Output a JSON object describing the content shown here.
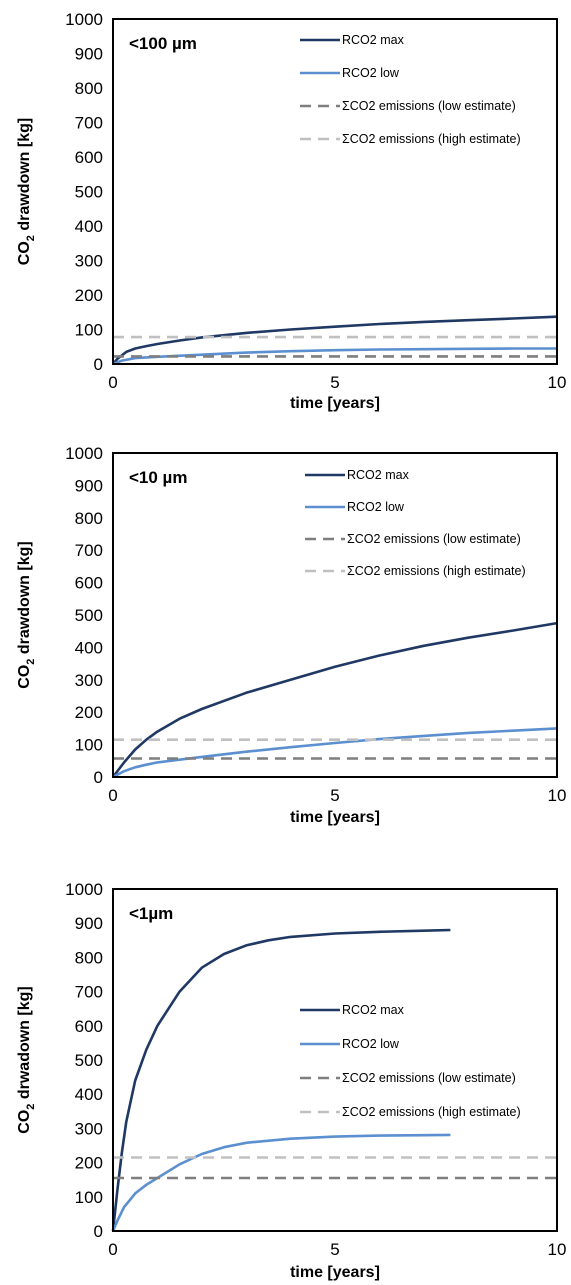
{
  "chart_data": [
    {
      "type": "line",
      "title": "<100 µm",
      "xlabel": "time [years]",
      "ylabel": {
        "main": "CO",
        "sub": "2",
        "rest": " drawdown [kg]"
      },
      "xlim": [
        0,
        10
      ],
      "ylim": [
        0,
        1000
      ],
      "xticks": [
        "0",
        "5",
        "10"
      ],
      "yticks": [
        "0",
        "100",
        "200",
        "300",
        "400",
        "500",
        "600",
        "700",
        "800",
        "900",
        "1000"
      ],
      "legend_position": "top-right",
      "series": [
        {
          "name": "RCO2 max",
          "color": "#203864",
          "dash": "solid",
          "x": [
            0,
            0.1,
            0.2,
            0.3,
            0.5,
            0.75,
            1,
            1.5,
            2,
            3,
            4,
            5,
            6,
            7,
            8,
            9,
            10
          ],
          "y": [
            0,
            15,
            25,
            35,
            45,
            52,
            58,
            68,
            77,
            90,
            100,
            108,
            116,
            122,
            127,
            132,
            137
          ]
        },
        {
          "name": "RCO2 low",
          "color": "#5b8fd0",
          "dash": "solid",
          "x": [
            0,
            0.2,
            0.5,
            1,
            2,
            3,
            4,
            5,
            6,
            7,
            8,
            9,
            10
          ],
          "y": [
            0,
            10,
            17,
            21,
            27,
            33,
            37,
            40,
            42,
            43,
            44,
            45,
            45
          ]
        },
        {
          "name": "ΣCO2 emissions (low estimate)",
          "color": "#7f7f7f",
          "dash": "dashed",
          "x": [
            0,
            10
          ],
          "y": [
            22,
            22
          ]
        },
        {
          "name": "ΣCO2 emissions (high estimate)",
          "color": "#c0c0c0",
          "dash": "dashed",
          "x": [
            0,
            10
          ],
          "y": [
            78,
            78
          ]
        }
      ]
    },
    {
      "type": "line",
      "title": "<10 µm",
      "xlabel": "time [years]",
      "ylabel": {
        "main": "CO",
        "sub": "2",
        "rest": " drawdown [kg]"
      },
      "xlim": [
        0,
        10
      ],
      "ylim": [
        0,
        1000
      ],
      "xticks": [
        "0",
        "5",
        "10"
      ],
      "yticks": [
        "0",
        "100",
        "200",
        "300",
        "400",
        "500",
        "600",
        "700",
        "800",
        "900",
        "1000"
      ],
      "legend_position": "top-right",
      "series": [
        {
          "name": "RCO2 max",
          "color": "#203864",
          "dash": "solid",
          "x": [
            0,
            0.25,
            0.5,
            0.75,
            1,
            1.5,
            2,
            3,
            4,
            5,
            6,
            7,
            8,
            9,
            10
          ],
          "y": [
            0,
            45,
            85,
            115,
            140,
            180,
            210,
            260,
            300,
            340,
            375,
            405,
            430,
            452,
            475
          ]
        },
        {
          "name": "RCO2 low",
          "color": "#5b8fd0",
          "dash": "solid",
          "x": [
            0,
            0.25,
            0.5,
            0.75,
            1,
            2,
            3,
            4,
            5,
            6,
            7,
            8,
            9,
            10
          ],
          "y": [
            0,
            18,
            30,
            38,
            45,
            62,
            78,
            92,
            105,
            117,
            127,
            136,
            143,
            150
          ]
        },
        {
          "name": "ΣCO2 emissions (low estimate)",
          "color": "#7f7f7f",
          "dash": "dashed",
          "x": [
            0,
            10
          ],
          "y": [
            57,
            57
          ]
        },
        {
          "name": "ΣCO2 emissions (high estimate)",
          "color": "#c0c0c0",
          "dash": "dashed",
          "x": [
            0,
            10
          ],
          "y": [
            115,
            115
          ]
        }
      ]
    },
    {
      "type": "line",
      "title": "<1µm",
      "xlabel": "time [years]",
      "ylabel": {
        "main": "CO",
        "sub": "2",
        "rest": " drwadown [kg]"
      },
      "xlim": [
        0,
        10
      ],
      "ylim": [
        0,
        1000
      ],
      "xticks": [
        "0",
        "5",
        "10"
      ],
      "yticks": [
        "0",
        "100",
        "200",
        "300",
        "400",
        "500",
        "600",
        "700",
        "800",
        "900",
        "1000"
      ],
      "legend_position": "center-right",
      "series": [
        {
          "name": "RCO2 max",
          "color": "#203864",
          "dash": "solid",
          "x": [
            0,
            0.1,
            0.2,
            0.3,
            0.5,
            0.75,
            1,
            1.5,
            2,
            2.5,
            3,
            3.5,
            4,
            5,
            6,
            7,
            7.6
          ],
          "y": [
            0,
            120,
            230,
            320,
            440,
            530,
            600,
            700,
            770,
            810,
            835,
            850,
            860,
            870,
            875,
            878,
            880
          ]
        },
        {
          "name": "RCO2 low",
          "color": "#5b8fd0",
          "dash": "solid",
          "x": [
            0,
            0.1,
            0.25,
            0.5,
            0.75,
            1,
            1.5,
            2,
            2.5,
            3,
            4,
            5,
            6,
            7,
            7.6
          ],
          "y": [
            0,
            30,
            70,
            110,
            135,
            155,
            195,
            225,
            245,
            258,
            270,
            276,
            279,
            280,
            281
          ]
        },
        {
          "name": "ΣCO2 emissions (low estimate)",
          "color": "#7f7f7f",
          "dash": "dashed",
          "x": [
            0,
            10
          ],
          "y": [
            155,
            155
          ]
        },
        {
          "name": "ΣCO2 emissions (high estimate)",
          "color": "#c0c0c0",
          "dash": "dashed",
          "x": [
            0,
            10
          ],
          "y": [
            215,
            215
          ]
        }
      ]
    }
  ]
}
